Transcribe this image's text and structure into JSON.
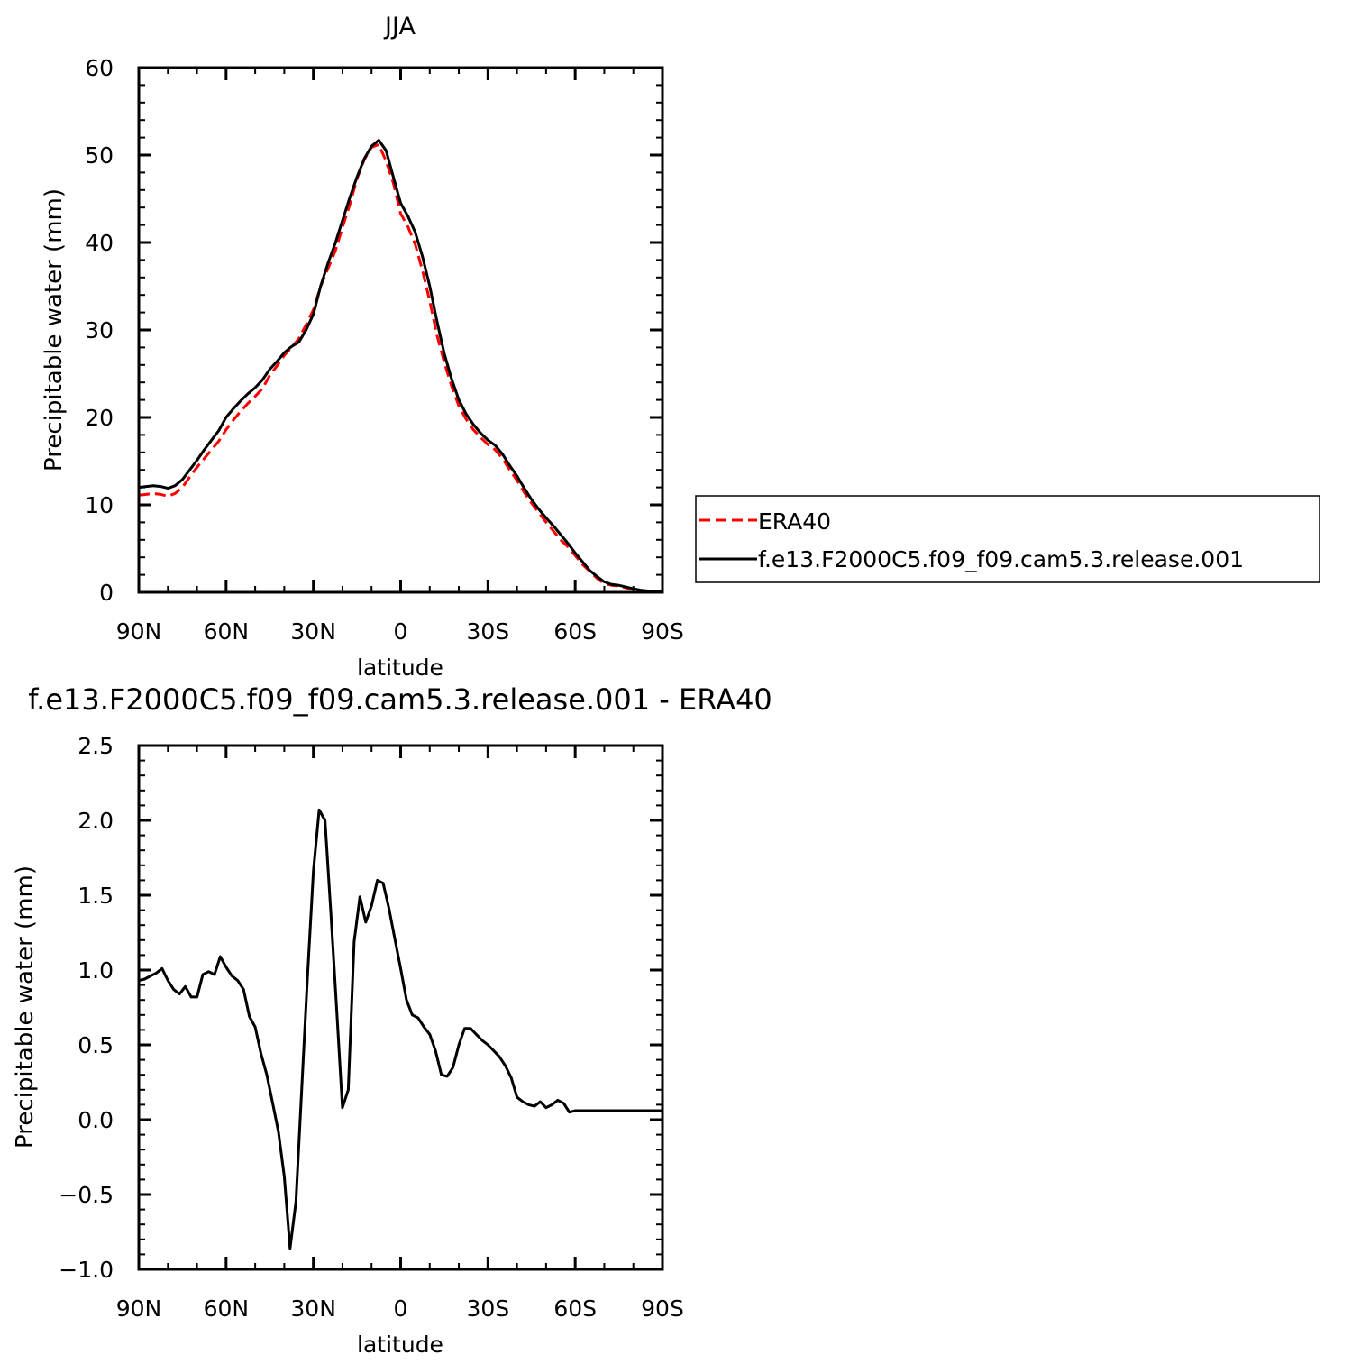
{
  "chart_data": [
    {
      "type": "line",
      "title": "JJA",
      "xlabel": "latitude",
      "ylabel": "Precipitable water (mm)",
      "xlim": [
        90,
        -90
      ],
      "ylim": [
        0,
        60
      ],
      "xtick_values": [
        90,
        60,
        30,
        0,
        -30,
        -60,
        -90
      ],
      "xtick_labels": [
        "90N",
        "60N",
        "30N",
        "0",
        "30S",
        "60S",
        "90S"
      ],
      "ytick_values": [
        0,
        10,
        20,
        30,
        40,
        50,
        60
      ],
      "ytick_labels": [
        "0",
        "10",
        "20",
        "30",
        "40",
        "50",
        "60"
      ],
      "grid": false,
      "legend_position": "right",
      "series": [
        {
          "name": "ERA40",
          "color": "#ff0000",
          "dash": "dashed",
          "x": [
            90,
            87.5,
            85,
            82.5,
            80,
            77.5,
            75,
            72.5,
            70,
            67.5,
            65,
            62.5,
            60,
            57.5,
            55,
            52.5,
            50,
            47.5,
            45,
            42.5,
            40,
            37.5,
            35,
            32.5,
            30,
            27.5,
            25,
            22.5,
            20,
            17.5,
            15,
            12.5,
            10,
            7.5,
            5,
            2.5,
            0,
            -2.5,
            -5,
            -7.5,
            -10,
            -12.5,
            -15,
            -17.5,
            -20,
            -22.5,
            -25,
            -27.5,
            -30,
            -32.5,
            -35,
            -37.5,
            -40,
            -42.5,
            -45,
            -47.5,
            -50,
            -52.5,
            -55,
            -57.5,
            -60,
            -62.5,
            -65,
            -67.5,
            -70,
            -72.5,
            -75,
            -77.5,
            -80,
            -82.5,
            -85,
            -87.5,
            -90
          ],
          "y": [
            11.1,
            11.2,
            11.3,
            11.2,
            11.0,
            11.3,
            12.0,
            13.2,
            14.3,
            15.3,
            16.3,
            17.3,
            18.6,
            19.7,
            20.7,
            21.6,
            22.4,
            23.3,
            24.8,
            25.9,
            27.1,
            28.0,
            29.0,
            30.6,
            32.3,
            35.0,
            37.0,
            39.0,
            41.7,
            44.3,
            47.3,
            49.5,
            50.9,
            51.2,
            49.3,
            46.8,
            43.3,
            41.8,
            39.8,
            36.8,
            33.3,
            29.4,
            26.3,
            23.6,
            21.3,
            19.8,
            18.6,
            17.7,
            16.9,
            16.3,
            15.3,
            14.0,
            12.8,
            11.4,
            10.2,
            9.1,
            8.0,
            7.0,
            6.0,
            5.2,
            4.2,
            3.2,
            2.4,
            1.6,
            1.0,
            0.8,
            0.7,
            0.5,
            0.3,
            0.2,
            0.1,
            0.05,
            0.0
          ]
        },
        {
          "name": "f.e13.F2000C5.f09_f09.cam5.3.release.001",
          "color": "#000000",
          "dash": "solid",
          "x": [
            90,
            87.5,
            85,
            82.5,
            80,
            77.5,
            75,
            72.5,
            70,
            67.5,
            65,
            62.5,
            60,
            57.5,
            55,
            52.5,
            50,
            47.5,
            45,
            42.5,
            40,
            37.5,
            35,
            32.5,
            30,
            27.5,
            25,
            22.5,
            20,
            17.5,
            15,
            12.5,
            10,
            7.5,
            5,
            2.5,
            0,
            -2.5,
            -5,
            -7.5,
            -10,
            -12.5,
            -15,
            -17.5,
            -20,
            -22.5,
            -25,
            -27.5,
            -30,
            -32.5,
            -35,
            -37.5,
            -40,
            -42.5,
            -45,
            -47.5,
            -50,
            -52.5,
            -55,
            -57.5,
            -60,
            -62.5,
            -65,
            -67.5,
            -70,
            -72.5,
            -75,
            -77.5,
            -80,
            -82.5,
            -85,
            -87.5,
            -90
          ],
          "y": [
            12.0,
            12.1,
            12.2,
            12.1,
            11.9,
            12.2,
            12.9,
            14.0,
            15.1,
            16.3,
            17.4,
            18.5,
            20.0,
            21.0,
            21.9,
            22.7,
            23.4,
            24.3,
            25.5,
            26.4,
            27.4,
            28.1,
            28.6,
            30.0,
            31.8,
            35.0,
            37.6,
            39.9,
            42.5,
            45.1,
            47.5,
            49.6,
            51.0,
            51.7,
            50.5,
            47.5,
            44.5,
            43.0,
            41.2,
            38.4,
            35.0,
            31.0,
            27.3,
            24.4,
            22.0,
            20.4,
            19.2,
            18.2,
            17.4,
            16.8,
            15.8,
            14.5,
            13.3,
            11.9,
            10.6,
            9.5,
            8.5,
            7.6,
            6.6,
            5.6,
            4.5,
            3.5,
            2.5,
            1.8,
            1.2,
            0.9,
            0.8,
            0.6,
            0.4,
            0.25,
            0.15,
            0.1,
            0.05
          ]
        }
      ]
    },
    {
      "type": "line",
      "title": "f.e13.F2000C5.f09_f09.cam5.3.release.001  -  ERA40",
      "xlabel": "latitude",
      "ylabel": "Precipitable water (mm)",
      "xlim": [
        90,
        -90
      ],
      "ylim": [
        -1.0,
        2.5
      ],
      "xtick_values": [
        90,
        60,
        30,
        0,
        -30,
        -60,
        -90
      ],
      "xtick_labels": [
        "90N",
        "60N",
        "30N",
        "0",
        "30S",
        "60S",
        "90S"
      ],
      "ytick_values": [
        -1.0,
        -0.5,
        0.0,
        0.5,
        1.0,
        1.5,
        2.0,
        2.5
      ],
      "ytick_labels": [
        "−1.0",
        "−0.5",
        "0.0",
        "0.5",
        "1.0",
        "1.5",
        "2.0",
        "2.5"
      ],
      "grid": false,
      "series": [
        {
          "color": "#000000",
          "dash": "solid",
          "x": [
            90,
            88,
            86,
            84,
            82,
            80,
            78,
            76,
            74,
            72,
            70,
            68,
            66,
            64,
            62,
            60,
            58,
            56,
            54,
            52,
            50,
            48,
            46,
            44,
            42,
            40,
            38,
            36,
            34,
            32,
            30,
            28,
            26,
            24,
            22,
            20,
            18,
            16,
            14,
            12,
            10,
            8,
            6,
            4,
            2,
            0,
            -2,
            -4,
            -6,
            -8,
            -10,
            -12,
            -14,
            -16,
            -18,
            -20,
            -22,
            -24,
            -26,
            -28,
            -30,
            -32,
            -34,
            -36,
            -38,
            -40,
            -42,
            -44,
            -46,
            -48,
            -50,
            -52,
            -54,
            -56,
            -58,
            -60,
            -62,
            -64,
            -66,
            -68,
            -70,
            -72,
            -74,
            -76,
            -78,
            -80,
            -82,
            -84,
            -86,
            -88,
            -90
          ],
          "y": [
            0.93,
            0.94,
            0.96,
            0.98,
            1.01,
            0.93,
            0.87,
            0.84,
            0.89,
            0.82,
            0.82,
            0.97,
            0.99,
            0.97,
            1.09,
            1.02,
            0.96,
            0.93,
            0.87,
            0.69,
            0.62,
            0.44,
            0.3,
            0.11,
            -0.08,
            -0.38,
            -0.86,
            -0.55,
            0.21,
            0.96,
            1.66,
            2.07,
            2.0,
            1.39,
            0.74,
            0.08,
            0.2,
            1.19,
            1.49,
            1.32,
            1.43,
            1.6,
            1.58,
            1.41,
            1.21,
            1.01,
            0.8,
            0.7,
            0.68,
            0.62,
            0.57,
            0.46,
            0.3,
            0.29,
            0.35,
            0.5,
            0.61,
            0.61,
            0.57,
            0.53,
            0.5,
            0.46,
            0.42,
            0.36,
            0.28,
            0.15,
            0.12,
            0.1,
            0.09,
            0.12,
            0.08,
            0.1,
            0.13,
            0.11,
            0.05,
            0.06,
            0.06,
            0.06,
            0.06,
            0.06,
            0.06,
            0.06,
            0.06,
            0.06,
            0.06,
            0.06,
            0.06,
            0.06,
            0.06,
            0.06,
            0.06
          ]
        }
      ]
    }
  ]
}
